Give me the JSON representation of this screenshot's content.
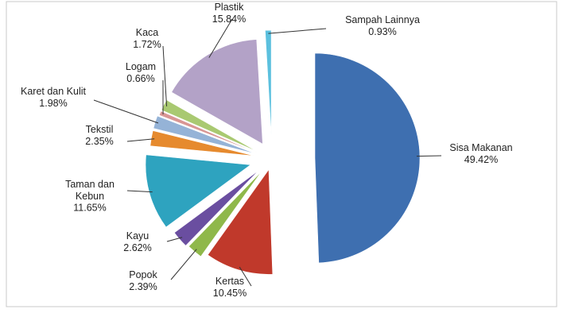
{
  "chart_data": {
    "type": "pie",
    "exploded": true,
    "slices": [
      {
        "label": [
          "Sisa Makanan"
        ],
        "percent_text": "49.42%",
        "value": 49.42,
        "color": "#3e6fb0"
      },
      {
        "label": [
          "Kertas"
        ],
        "percent_text": "10.45%",
        "value": 10.45,
        "color": "#c0392b"
      },
      {
        "label": [
          "Popok"
        ],
        "percent_text": "2.39%",
        "value": 2.39,
        "color": "#8fb84a"
      },
      {
        "label": [
          "Kayu"
        ],
        "percent_text": "2.62%",
        "value": 2.62,
        "color": "#6a4ea0"
      },
      {
        "label": [
          "Taman dan",
          "Kebun"
        ],
        "percent_text": "11.65%",
        "value": 11.65,
        "color": "#2ea3bf"
      },
      {
        "label": [
          "Tekstil"
        ],
        "percent_text": "2.35%",
        "value": 2.35,
        "color": "#e68a2e"
      },
      {
        "label": [
          "Karet dan Kulit"
        ],
        "percent_text": "1.98%",
        "value": 1.98,
        "color": "#95b3d7"
      },
      {
        "label": [
          "Logam"
        ],
        "percent_text": "0.66%",
        "value": 0.66,
        "color": "#d99694"
      },
      {
        "label": [
          "Kaca"
        ],
        "percent_text": "1.72%",
        "value": 1.72,
        "color": "#a9c971"
      },
      {
        "label": [
          "Plastik"
        ],
        "percent_text": "15.84%",
        "value": 15.84,
        "color": "#b3a2c7"
      },
      {
        "label": [
          "Sampah Lainnya"
        ],
        "percent_text": "0.93%",
        "value": 0.93,
        "color": "#5bc0de"
      }
    ]
  }
}
